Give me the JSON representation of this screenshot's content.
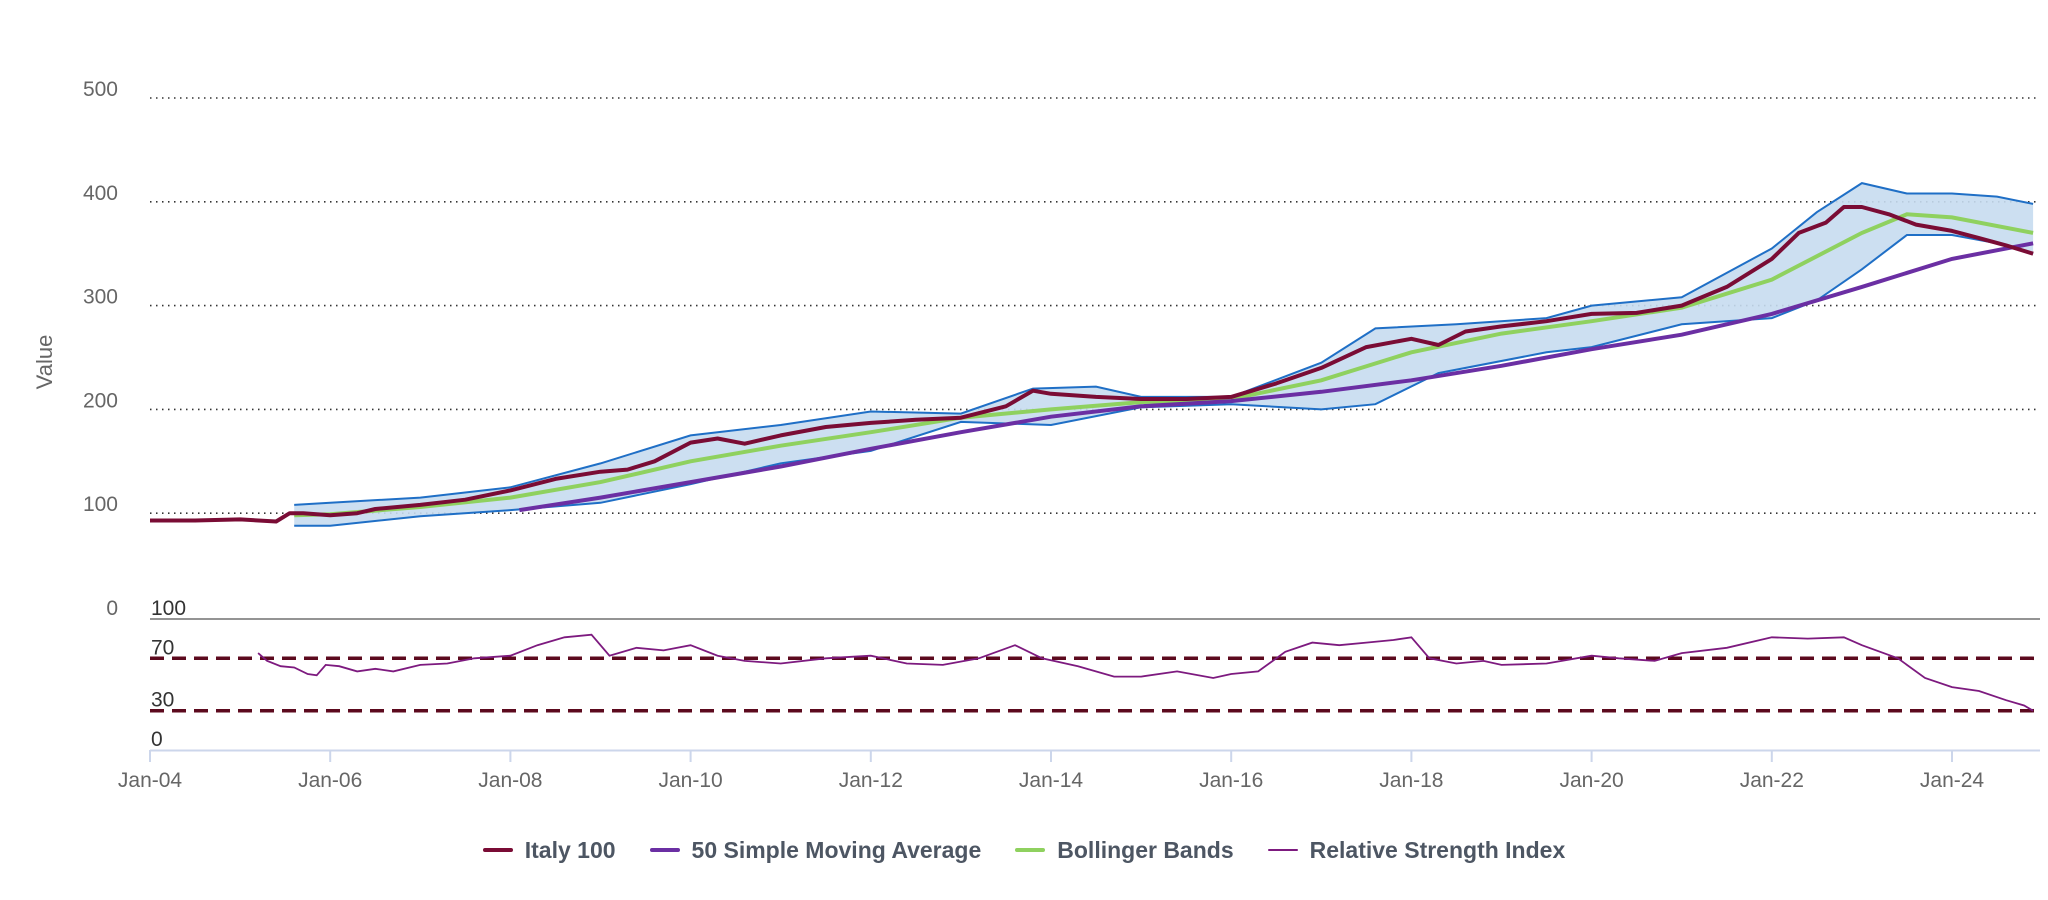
{
  "chart_data": {
    "type": "line",
    "x_range": [
      "Jan-04",
      "Dec-24"
    ],
    "x_ticks": [
      "Jan-04",
      "Jan-06",
      "Jan-08",
      "Jan-10",
      "Jan-12",
      "Jan-14",
      "Jan-16",
      "Jan-18",
      "Jan-20",
      "Jan-22",
      "Jan-24"
    ],
    "price_pane": {
      "ylabel": "Value",
      "ylim": [
        0,
        500
      ],
      "y_ticks": [
        0,
        100,
        200,
        300,
        400,
        500
      ],
      "grid": "dotted",
      "series": [
        {
          "name": "Italy 100",
          "color": "#7a0c35",
          "points": [
            [
              2004.0,
              93
            ],
            [
              2004.5,
              93
            ],
            [
              2005.0,
              94
            ],
            [
              2005.4,
              92
            ],
            [
              2005.55,
              100
            ],
            [
              2005.7,
              100
            ],
            [
              2006.0,
              98
            ],
            [
              2006.3,
              100
            ],
            [
              2006.5,
              104
            ],
            [
              2007.0,
              108
            ],
            [
              2007.5,
              113
            ],
            [
              2008.0,
              122
            ],
            [
              2008.5,
              133
            ],
            [
              2009.0,
              140
            ],
            [
              2009.3,
              142
            ],
            [
              2009.6,
              150
            ],
            [
              2010.0,
              168
            ],
            [
              2010.3,
              172
            ],
            [
              2010.6,
              167
            ],
            [
              2011.0,
              175
            ],
            [
              2011.5,
              183
            ],
            [
              2012.0,
              187
            ],
            [
              2012.5,
              190
            ],
            [
              2013.0,
              192
            ],
            [
              2013.5,
              203
            ],
            [
              2013.8,
              218
            ],
            [
              2014.0,
              215
            ],
            [
              2014.5,
              212
            ],
            [
              2015.0,
              210
            ],
            [
              2015.5,
              210
            ],
            [
              2016.0,
              212
            ],
            [
              2016.5,
              225
            ],
            [
              2017.0,
              240
            ],
            [
              2017.5,
              260
            ],
            [
              2018.0,
              268
            ],
            [
              2018.3,
              262
            ],
            [
              2018.6,
              275
            ],
            [
              2019.0,
              280
            ],
            [
              2019.5,
              285
            ],
            [
              2020.0,
              292
            ],
            [
              2020.5,
              293
            ],
            [
              2021.0,
              300
            ],
            [
              2021.5,
              318
            ],
            [
              2022.0,
              345
            ],
            [
              2022.3,
              370
            ],
            [
              2022.6,
              380
            ],
            [
              2022.8,
              395
            ],
            [
              2023.0,
              395
            ],
            [
              2023.3,
              388
            ],
            [
              2023.6,
              378
            ],
            [
              2024.0,
              372
            ],
            [
              2024.3,
              365
            ],
            [
              2024.6,
              358
            ],
            [
              2024.9,
              350
            ]
          ]
        },
        {
          "name": "50 Simple Moving Average",
          "color": "#6b2fa3",
          "points": [
            [
              2008.1,
              103
            ],
            [
              2009.0,
              115
            ],
            [
              2010.0,
              130
            ],
            [
              2011.0,
              145
            ],
            [
              2012.0,
              162
            ],
            [
              2013.0,
              178
            ],
            [
              2014.0,
              193
            ],
            [
              2015.0,
              203
            ],
            [
              2016.0,
              208
            ],
            [
              2017.0,
              217
            ],
            [
              2018.0,
              228
            ],
            [
              2019.0,
              242
            ],
            [
              2020.0,
              258
            ],
            [
              2021.0,
              272
            ],
            [
              2022.0,
              292
            ],
            [
              2023.0,
              318
            ],
            [
              2024.0,
              345
            ],
            [
              2024.9,
              360
            ]
          ]
        },
        {
          "name": "Bollinger Bands",
          "color": "#8fd15f",
          "band_fill": "#c6dcf0",
          "band_edge": "#1f6fc6",
          "middle": [
            [
              2005.6,
              98
            ],
            [
              2006.0,
              99
            ],
            [
              2007.0,
              106
            ],
            [
              2008.0,
              115
            ],
            [
              2009.0,
              130
            ],
            [
              2010.0,
              150
            ],
            [
              2011.0,
              165
            ],
            [
              2012.0,
              178
            ],
            [
              2013.0,
              192
            ],
            [
              2014.0,
              200
            ],
            [
              2015.0,
              207
            ],
            [
              2016.0,
              210
            ],
            [
              2017.0,
              228
            ],
            [
              2018.0,
              255
            ],
            [
              2019.0,
              273
            ],
            [
              2020.0,
              285
            ],
            [
              2021.0,
              298
            ],
            [
              2022.0,
              325
            ],
            [
              2023.0,
              370
            ],
            [
              2023.5,
              388
            ],
            [
              2024.0,
              385
            ],
            [
              2024.9,
              370
            ]
          ],
          "upper": [
            [
              2005.6,
              108
            ],
            [
              2006.0,
              110
            ],
            [
              2007.0,
              115
            ],
            [
              2008.0,
              125
            ],
            [
              2009.0,
              148
            ],
            [
              2010.0,
              175
            ],
            [
              2011.0,
              185
            ],
            [
              2012.0,
              198
            ],
            [
              2013.0,
              196
            ],
            [
              2013.8,
              220
            ],
            [
              2014.5,
              222
            ],
            [
              2015.0,
              212
            ],
            [
              2016.0,
              212
            ],
            [
              2017.0,
              245
            ],
            [
              2017.6,
              278
            ],
            [
              2018.5,
              282
            ],
            [
              2019.5,
              288
            ],
            [
              2020.0,
              300
            ],
            [
              2021.0,
              308
            ],
            [
              2022.0,
              355
            ],
            [
              2022.5,
              390
            ],
            [
              2023.0,
              418
            ],
            [
              2023.5,
              408
            ],
            [
              2024.0,
              408
            ],
            [
              2024.5,
              405
            ],
            [
              2024.9,
              398
            ]
          ],
          "lower": [
            [
              2005.6,
              88
            ],
            [
              2006.0,
              88
            ],
            [
              2007.0,
              97
            ],
            [
              2008.0,
              103
            ],
            [
              2009.0,
              110
            ],
            [
              2010.0,
              128
            ],
            [
              2011.0,
              148
            ],
            [
              2012.0,
              160
            ],
            [
              2013.0,
              188
            ],
            [
              2014.0,
              185
            ],
            [
              2015.0,
              202
            ],
            [
              2016.0,
              205
            ],
            [
              2017.0,
              200
            ],
            [
              2017.6,
              205
            ],
            [
              2018.3,
              235
            ],
            [
              2019.5,
              255
            ],
            [
              2020.0,
              260
            ],
            [
              2021.0,
              282
            ],
            [
              2022.0,
              288
            ],
            [
              2022.5,
              305
            ],
            [
              2023.0,
              335
            ],
            [
              2023.5,
              368
            ],
            [
              2024.0,
              368
            ],
            [
              2024.5,
              360
            ],
            [
              2024.9,
              350
            ]
          ]
        }
      ]
    },
    "rsi_pane": {
      "ylim": [
        0,
        100
      ],
      "y_ticks": [
        0,
        30,
        70,
        100
      ],
      "reference_lines": [
        70,
        30
      ],
      "reference_color": "#5c0a1e",
      "series": {
        "name": "Relative Strength Index",
        "color": "#7d1a7f",
        "points": [
          [
            2005.2,
            74
          ],
          [
            2005.3,
            68
          ],
          [
            2005.45,
            64
          ],
          [
            2005.6,
            63
          ],
          [
            2005.75,
            58
          ],
          [
            2005.85,
            57
          ],
          [
            2005.95,
            65
          ],
          [
            2006.1,
            64
          ],
          [
            2006.3,
            60
          ],
          [
            2006.5,
            62
          ],
          [
            2006.7,
            60
          ],
          [
            2007.0,
            65
          ],
          [
            2007.3,
            66
          ],
          [
            2007.6,
            70
          ],
          [
            2008.0,
            72
          ],
          [
            2008.3,
            80
          ],
          [
            2008.6,
            86
          ],
          [
            2008.9,
            88
          ],
          [
            2009.1,
            72
          ],
          [
            2009.4,
            78
          ],
          [
            2009.7,
            76
          ],
          [
            2010.0,
            80
          ],
          [
            2010.3,
            72
          ],
          [
            2010.6,
            68
          ],
          [
            2011.0,
            66
          ],
          [
            2011.5,
            70
          ],
          [
            2012.0,
            72
          ],
          [
            2012.4,
            66
          ],
          [
            2012.8,
            65
          ],
          [
            2013.2,
            70
          ],
          [
            2013.6,
            80
          ],
          [
            2013.9,
            70
          ],
          [
            2014.3,
            64
          ],
          [
            2014.7,
            56
          ],
          [
            2015.0,
            56
          ],
          [
            2015.4,
            60
          ],
          [
            2015.8,
            55
          ],
          [
            2016.0,
            58
          ],
          [
            2016.3,
            60
          ],
          [
            2016.6,
            75
          ],
          [
            2016.9,
            82
          ],
          [
            2017.2,
            80
          ],
          [
            2017.5,
            82
          ],
          [
            2017.8,
            84
          ],
          [
            2018.0,
            86
          ],
          [
            2018.2,
            70
          ],
          [
            2018.5,
            66
          ],
          [
            2018.8,
            68
          ],
          [
            2019.0,
            65
          ],
          [
            2019.5,
            66
          ],
          [
            2020.0,
            72
          ],
          [
            2020.3,
            70
          ],
          [
            2020.7,
            68
          ],
          [
            2021.0,
            74
          ],
          [
            2021.5,
            78
          ],
          [
            2022.0,
            86
          ],
          [
            2022.4,
            85
          ],
          [
            2022.8,
            86
          ],
          [
            2023.0,
            80
          ],
          [
            2023.4,
            70
          ],
          [
            2023.7,
            55
          ],
          [
            2024.0,
            48
          ],
          [
            2024.3,
            45
          ],
          [
            2024.6,
            38
          ],
          [
            2024.8,
            34
          ],
          [
            2024.9,
            30
          ]
        ]
      }
    },
    "legend": {
      "position": "bottom-center",
      "items": [
        {
          "label": "Italy 100",
          "color": "#7a0c35"
        },
        {
          "label": "50 Simple Moving Average",
          "color": "#6b2fa3"
        },
        {
          "label": "Bollinger Bands",
          "color": "#8fd15f"
        },
        {
          "label": "Relative Strength Index",
          "color": "#7d1a7f"
        }
      ]
    }
  }
}
